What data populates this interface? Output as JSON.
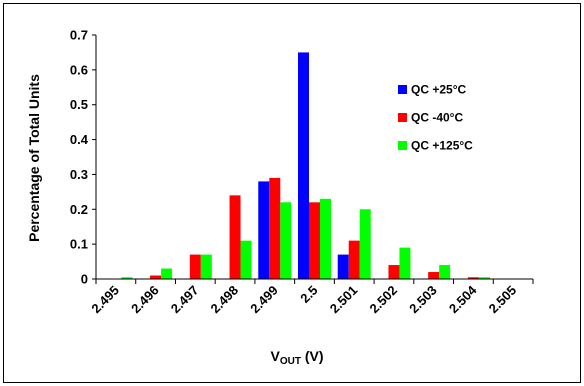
{
  "chart_data": {
    "type": "bar",
    "title": "",
    "xlabel_main": "V",
    "xlabel_sub": "OUT",
    "xlabel_unit": " (V)",
    "ylabel": "Percentage of Total Units",
    "ylim": [
      0,
      0.7
    ],
    "yticks": [
      "0",
      "0.1",
      "0.2",
      "0.3",
      "0.4",
      "0.5",
      "0.6",
      "0.7"
    ],
    "categories": [
      "2.495",
      "2.496",
      "2.497",
      "2.498",
      "2.499",
      "2.5",
      "2.501",
      "2.502",
      "2.503",
      "2.504",
      "2.505"
    ],
    "grid": false,
    "legend_position": "right",
    "series": [
      {
        "name": "QC +25°C",
        "color": "#0000ff",
        "values": [
          0,
          0,
          0,
          0,
          0.28,
          0.65,
          0.07,
          0,
          0,
          0,
          0
        ]
      },
      {
        "name": "QC -40°C",
        "color": "#ff0000",
        "values": [
          0,
          0.01,
          0.07,
          0.24,
          0.29,
          0.22,
          0.11,
          0.04,
          0.02,
          0.005,
          0
        ]
      },
      {
        "name": "QC +125°C",
        "color": "#00ff00",
        "values": [
          0.005,
          0.03,
          0.07,
          0.11,
          0.22,
          0.23,
          0.2,
          0.09,
          0.04,
          0.005,
          0
        ]
      }
    ]
  }
}
